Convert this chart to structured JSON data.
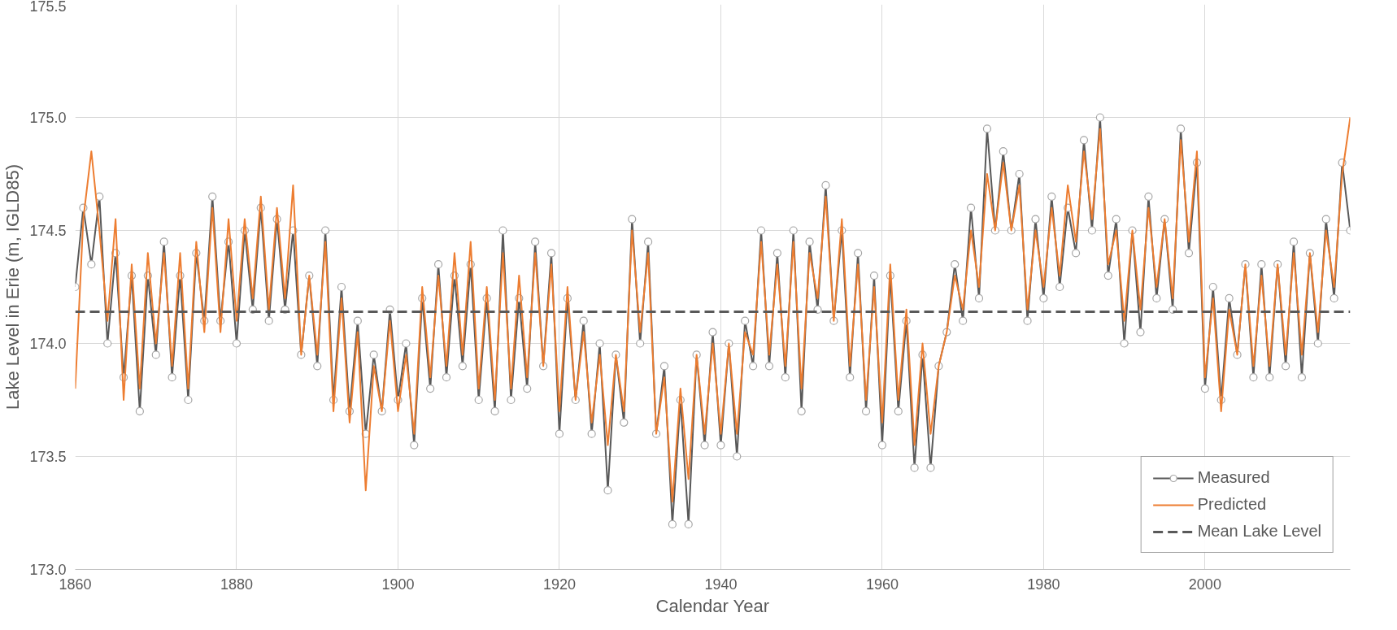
{
  "chart_data": {
    "type": "line",
    "xlabel": "Calendar Year",
    "ylabel": "Lake Level in Erie (m, IGLD85)",
    "xlim": [
      1860,
      2018
    ],
    "xticks": [
      1860,
      1880,
      1900,
      1920,
      1940,
      1960,
      1980,
      2000
    ],
    "ylim": [
      173.0,
      175.5
    ],
    "yticks": [
      {
        "value": 173.0,
        "label": "173.0"
      },
      {
        "value": 173.5,
        "label": "173.5"
      },
      {
        "value": 174.0,
        "label": "174.0"
      },
      {
        "value": 174.5,
        "label": "174.5"
      },
      {
        "value": 175.0,
        "label": "175.0"
      },
      {
        "value": 175.5,
        "label": "175.5"
      }
    ],
    "grid": true,
    "legend": "bottom right",
    "line_style": "solid",
    "x": [
      1860,
      1861,
      1862,
      1863,
      1864,
      1865,
      1866,
      1867,
      1868,
      1869,
      1870,
      1871,
      1872,
      1873,
      1874,
      1875,
      1876,
      1877,
      1878,
      1879,
      1880,
      1881,
      1882,
      1883,
      1884,
      1885,
      1886,
      1887,
      1888,
      1889,
      1890,
      1891,
      1892,
      1893,
      1894,
      1895,
      1896,
      1897,
      1898,
      1899,
      1900,
      1901,
      1902,
      1903,
      1904,
      1905,
      1906,
      1907,
      1908,
      1909,
      1910,
      1911,
      1912,
      1913,
      1914,
      1915,
      1916,
      1917,
      1918,
      1919,
      1920,
      1921,
      1922,
      1923,
      1924,
      1925,
      1926,
      1927,
      1928,
      1929,
      1930,
      1931,
      1932,
      1933,
      1934,
      1935,
      1936,
      1937,
      1938,
      1939,
      1940,
      1941,
      1942,
      1943,
      1944,
      1945,
      1946,
      1947,
      1948,
      1949,
      1950,
      1951,
      1952,
      1953,
      1954,
      1955,
      1956,
      1957,
      1958,
      1959,
      1960,
      1961,
      1962,
      1963,
      1964,
      1965,
      1966,
      1967,
      1968,
      1969,
      1970,
      1971,
      1972,
      1973,
      1974,
      1975,
      1976,
      1977,
      1978,
      1979,
      1980,
      1981,
      1982,
      1983,
      1984,
      1985,
      1986,
      1987,
      1988,
      1989,
      1990,
      1991,
      1992,
      1993,
      1994,
      1995,
      1996,
      1997,
      1998,
      1999,
      2000,
      2001,
      2002,
      2003,
      2004,
      2005,
      2006,
      2007,
      2008,
      2009,
      2010,
      2011,
      2012,
      2013,
      2014,
      2015,
      2016,
      2017,
      2018
    ],
    "series": [
      {
        "name": "Measured",
        "color": "#595959",
        "marker": "circle",
        "values": [
          174.25,
          174.6,
          174.35,
          174.65,
          174.0,
          174.4,
          173.85,
          174.3,
          173.7,
          174.3,
          173.95,
          174.45,
          173.85,
          174.3,
          173.75,
          174.4,
          174.1,
          174.65,
          174.1,
          174.45,
          174.0,
          174.5,
          174.15,
          174.6,
          174.1,
          174.55,
          174.15,
          174.5,
          173.95,
          174.3,
          173.9,
          174.5,
          173.75,
          174.25,
          173.7,
          174.1,
          173.6,
          173.95,
          173.7,
          174.15,
          173.75,
          174.0,
          173.55,
          174.2,
          173.8,
          174.35,
          173.85,
          174.3,
          173.9,
          174.35,
          173.75,
          174.2,
          173.7,
          174.5,
          173.75,
          174.2,
          173.8,
          174.45,
          173.9,
          174.4,
          173.6,
          174.2,
          173.75,
          174.1,
          173.6,
          174.0,
          173.35,
          173.95,
          173.65,
          174.55,
          174.0,
          174.45,
          173.6,
          173.9,
          173.2,
          173.75,
          173.2,
          173.95,
          173.55,
          174.05,
          173.55,
          174.0,
          173.5,
          174.1,
          173.9,
          174.5,
          173.9,
          174.4,
          173.85,
          174.5,
          173.7,
          174.45,
          174.15,
          174.7,
          174.1,
          174.5,
          173.85,
          174.4,
          173.7,
          174.3,
          173.55,
          174.3,
          173.7,
          174.1,
          173.45,
          173.95,
          173.45,
          173.9,
          174.05,
          174.35,
          174.1,
          174.6,
          174.2,
          174.95,
          174.5,
          174.85,
          174.5,
          174.75,
          174.1,
          174.55,
          174.2,
          174.65,
          174.25,
          174.6,
          174.4,
          174.9,
          174.5,
          175.0,
          174.3,
          174.55,
          174.0,
          174.5,
          174.05,
          174.65,
          174.2,
          174.55,
          174.15,
          174.95,
          174.4,
          174.8,
          173.8,
          174.25,
          173.75,
          174.2,
          173.95,
          174.35,
          173.85,
          174.35,
          173.85,
          174.35,
          173.9,
          174.45,
          173.85,
          174.4,
          174.0,
          174.55,
          174.2,
          174.8,
          174.5
        ]
      },
      {
        "name": "Predicted",
        "color": "#ed7d31",
        "marker": "none",
        "values": [
          173.8,
          174.55,
          174.85,
          174.5,
          174.1,
          174.55,
          173.75,
          174.35,
          173.8,
          174.4,
          174.0,
          174.4,
          173.9,
          174.4,
          173.8,
          174.45,
          174.05,
          174.6,
          174.05,
          174.55,
          174.1,
          174.55,
          174.2,
          174.65,
          174.15,
          174.6,
          174.2,
          174.7,
          173.95,
          174.3,
          173.95,
          174.45,
          173.7,
          174.2,
          173.65,
          174.05,
          173.35,
          173.9,
          173.7,
          174.1,
          173.7,
          173.95,
          173.6,
          174.25,
          173.85,
          174.3,
          173.9,
          174.4,
          173.95,
          174.45,
          173.8,
          174.25,
          173.75,
          174.4,
          173.8,
          174.3,
          173.85,
          174.4,
          173.9,
          174.35,
          173.7,
          174.25,
          173.75,
          174.05,
          173.65,
          173.95,
          173.55,
          173.95,
          173.7,
          174.5,
          174.05,
          174.4,
          173.6,
          173.85,
          173.3,
          173.8,
          173.4,
          173.95,
          173.6,
          174.0,
          173.6,
          174.0,
          173.6,
          174.05,
          173.95,
          174.45,
          173.95,
          174.35,
          173.9,
          174.45,
          173.8,
          174.4,
          174.2,
          174.65,
          174.1,
          174.55,
          173.9,
          174.35,
          173.75,
          174.25,
          173.65,
          174.35,
          173.75,
          174.15,
          173.55,
          174.0,
          173.6,
          173.9,
          174.05,
          174.3,
          174.15,
          174.5,
          174.25,
          174.75,
          174.5,
          174.8,
          174.5,
          174.7,
          174.15,
          174.5,
          174.25,
          174.6,
          174.3,
          174.7,
          174.45,
          174.85,
          174.55,
          174.95,
          174.35,
          174.5,
          174.1,
          174.5,
          174.15,
          174.6,
          174.25,
          174.55,
          174.2,
          174.9,
          174.45,
          174.85,
          173.85,
          174.2,
          173.7,
          174.15,
          173.95,
          174.35,
          173.9,
          174.3,
          173.9,
          174.35,
          173.95,
          174.4,
          173.95,
          174.4,
          174.05,
          174.5,
          174.25,
          174.75,
          175.0
        ]
      }
    ],
    "ref_lines": [
      {
        "axis": "y",
        "value": 174.14,
        "label": "Mean Lake Level",
        "color": "#595959",
        "line_style": "dashed"
      }
    ]
  }
}
